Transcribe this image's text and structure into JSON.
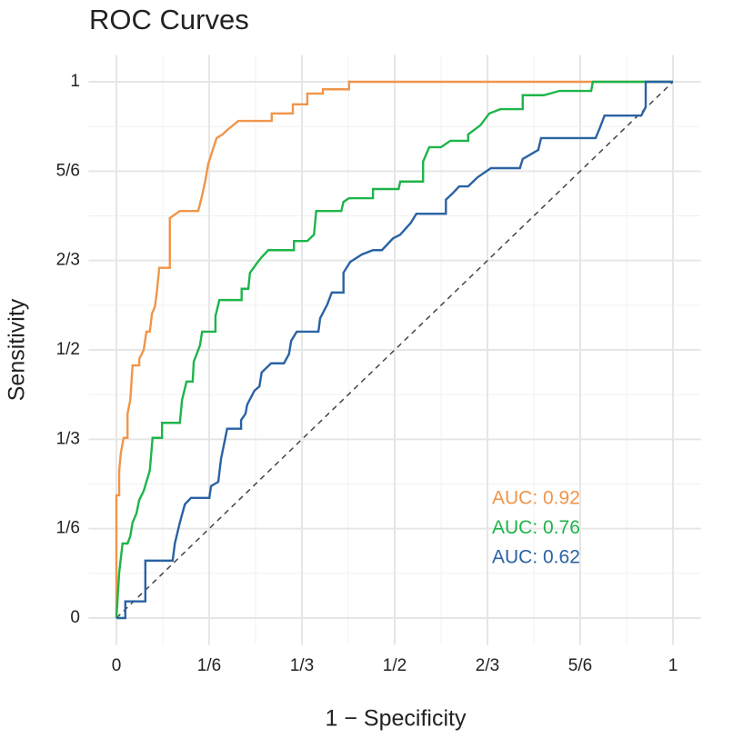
{
  "chart_data": {
    "type": "line",
    "title": "ROC Curves",
    "x_label": "1 − Specificity",
    "y_label": "Sensitivity",
    "xlim": [
      -0.05,
      1.05
    ],
    "ylim": [
      -0.05,
      1.05
    ],
    "grid": true,
    "diagonal": true,
    "xticks": [
      0,
      {
        "value": 0.16667,
        "label": "1/6"
      },
      {
        "value": 0.33333,
        "label": "1/3"
      },
      {
        "value": 0.5,
        "label": "1/2"
      },
      {
        "value": 0.66667,
        "label": "2/3"
      },
      {
        "value": 0.83333,
        "label": "5/6"
      },
      1
    ],
    "yticks": [
      0,
      {
        "value": 0.16667,
        "label": "1/6"
      },
      {
        "value": 0.33333,
        "label": "1/3"
      },
      {
        "value": 0.5,
        "label": "1/2"
      },
      {
        "value": 0.66667,
        "label": "2/3"
      },
      {
        "value": 0.83333,
        "label": "5/6"
      },
      1
    ],
    "series": [
      {
        "label": "AUC: 0.92",
        "color": "#f0954a",
        "x": [
          0,
          0,
          0.005,
          0.005,
          0.008,
          0.013,
          0.02,
          0.02,
          0.025,
          0.029,
          0.041,
          0.041,
          0.049,
          0.054,
          0.06,
          0.064,
          0.069,
          0.072,
          0.077,
          0.096,
          0.096,
          0.114,
          0.147,
          0.154,
          0.16,
          0.165,
          0.18,
          0.191,
          0.199,
          0.219,
          0.279,
          0.279,
          0.317,
          0.317,
          0.343,
          0.343,
          0.371,
          0.371,
          0.418,
          0.418,
          1
        ],
        "values": [
          0,
          0.229,
          0.229,
          0.275,
          0.308,
          0.336,
          0.336,
          0.381,
          0.407,
          0.471,
          0.471,
          0.483,
          0.5,
          0.534,
          0.534,
          0.568,
          0.58,
          0.602,
          0.653,
          0.653,
          0.746,
          0.759,
          0.759,
          0.788,
          0.817,
          0.847,
          0.895,
          0.902,
          0.91,
          0.927,
          0.927,
          0.941,
          0.941,
          0.958,
          0.958,
          0.978,
          0.978,
          0.986,
          0.986,
          1,
          1
        ]
      },
      {
        "label": "AUC: 0.76",
        "color": "#1db54a",
        "x": [
          0,
          0.005,
          0.011,
          0.02,
          0.025,
          0.029,
          0.036,
          0.041,
          0.049,
          0.06,
          0.065,
          0.082,
          0.082,
          0.114,
          0.118,
          0.126,
          0.137,
          0.139,
          0.15,
          0.154,
          0.178,
          0.178,
          0.185,
          0.225,
          0.225,
          0.237,
          0.24,
          0.252,
          0.261,
          0.273,
          0.319,
          0.319,
          0.343,
          0.355,
          0.359,
          0.404,
          0.408,
          0.418,
          0.461,
          0.461,
          0.507,
          0.51,
          0.551,
          0.551,
          0.562,
          0.583,
          0.6,
          0.632,
          0.632,
          0.654,
          0.67,
          0.69,
          0.73,
          0.73,
          0.768,
          0.796,
          0.853,
          0.856,
          1
        ],
        "values": [
          0,
          0.085,
          0.139,
          0.139,
          0.153,
          0.178,
          0.195,
          0.22,
          0.237,
          0.275,
          0.336,
          0.336,
          0.364,
          0.364,
          0.407,
          0.441,
          0.441,
          0.478,
          0.508,
          0.534,
          0.534,
          0.563,
          0.593,
          0.593,
          0.614,
          0.614,
          0.644,
          0.661,
          0.673,
          0.686,
          0.686,
          0.703,
          0.703,
          0.715,
          0.759,
          0.759,
          0.776,
          0.783,
          0.783,
          0.8,
          0.8,
          0.814,
          0.814,
          0.851,
          0.878,
          0.878,
          0.89,
          0.89,
          0.902,
          0.919,
          0.941,
          0.949,
          0.949,
          0.975,
          0.975,
          0.983,
          0.983,
          1,
          1
        ]
      },
      {
        "label": "AUC: 0.62",
        "color": "#2a62a4",
        "x": [
          0,
          0.016,
          0.016,
          0.052,
          0.052,
          0.101,
          0.105,
          0.114,
          0.123,
          0.134,
          0.167,
          0.17,
          0.183,
          0.188,
          0.199,
          0.224,
          0.224,
          0.232,
          0.235,
          0.248,
          0.257,
          0.261,
          0.278,
          0.301,
          0.31,
          0.314,
          0.324,
          0.363,
          0.366,
          0.379,
          0.387,
          0.408,
          0.408,
          0.42,
          0.441,
          0.461,
          0.477,
          0.497,
          0.51,
          0.529,
          0.539,
          0.592,
          0.592,
          0.605,
          0.616,
          0.632,
          0.649,
          0.673,
          0.725,
          0.73,
          0.758,
          0.763,
          0.861,
          0.869,
          0.877,
          0.943,
          0.951,
          0.951,
          1
        ],
        "values": [
          0,
          0,
          0.031,
          0.031,
          0.107,
          0.107,
          0.139,
          0.178,
          0.212,
          0.224,
          0.224,
          0.246,
          0.254,
          0.297,
          0.353,
          0.353,
          0.369,
          0.381,
          0.398,
          0.424,
          0.432,
          0.458,
          0.475,
          0.475,
          0.492,
          0.517,
          0.534,
          0.534,
          0.559,
          0.585,
          0.607,
          0.607,
          0.644,
          0.664,
          0.678,
          0.686,
          0.686,
          0.708,
          0.715,
          0.737,
          0.754,
          0.754,
          0.78,
          0.793,
          0.805,
          0.805,
          0.822,
          0.839,
          0.839,
          0.856,
          0.873,
          0.895,
          0.895,
          0.915,
          0.937,
          0.937,
          0.953,
          1,
          1
        ]
      }
    ]
  }
}
